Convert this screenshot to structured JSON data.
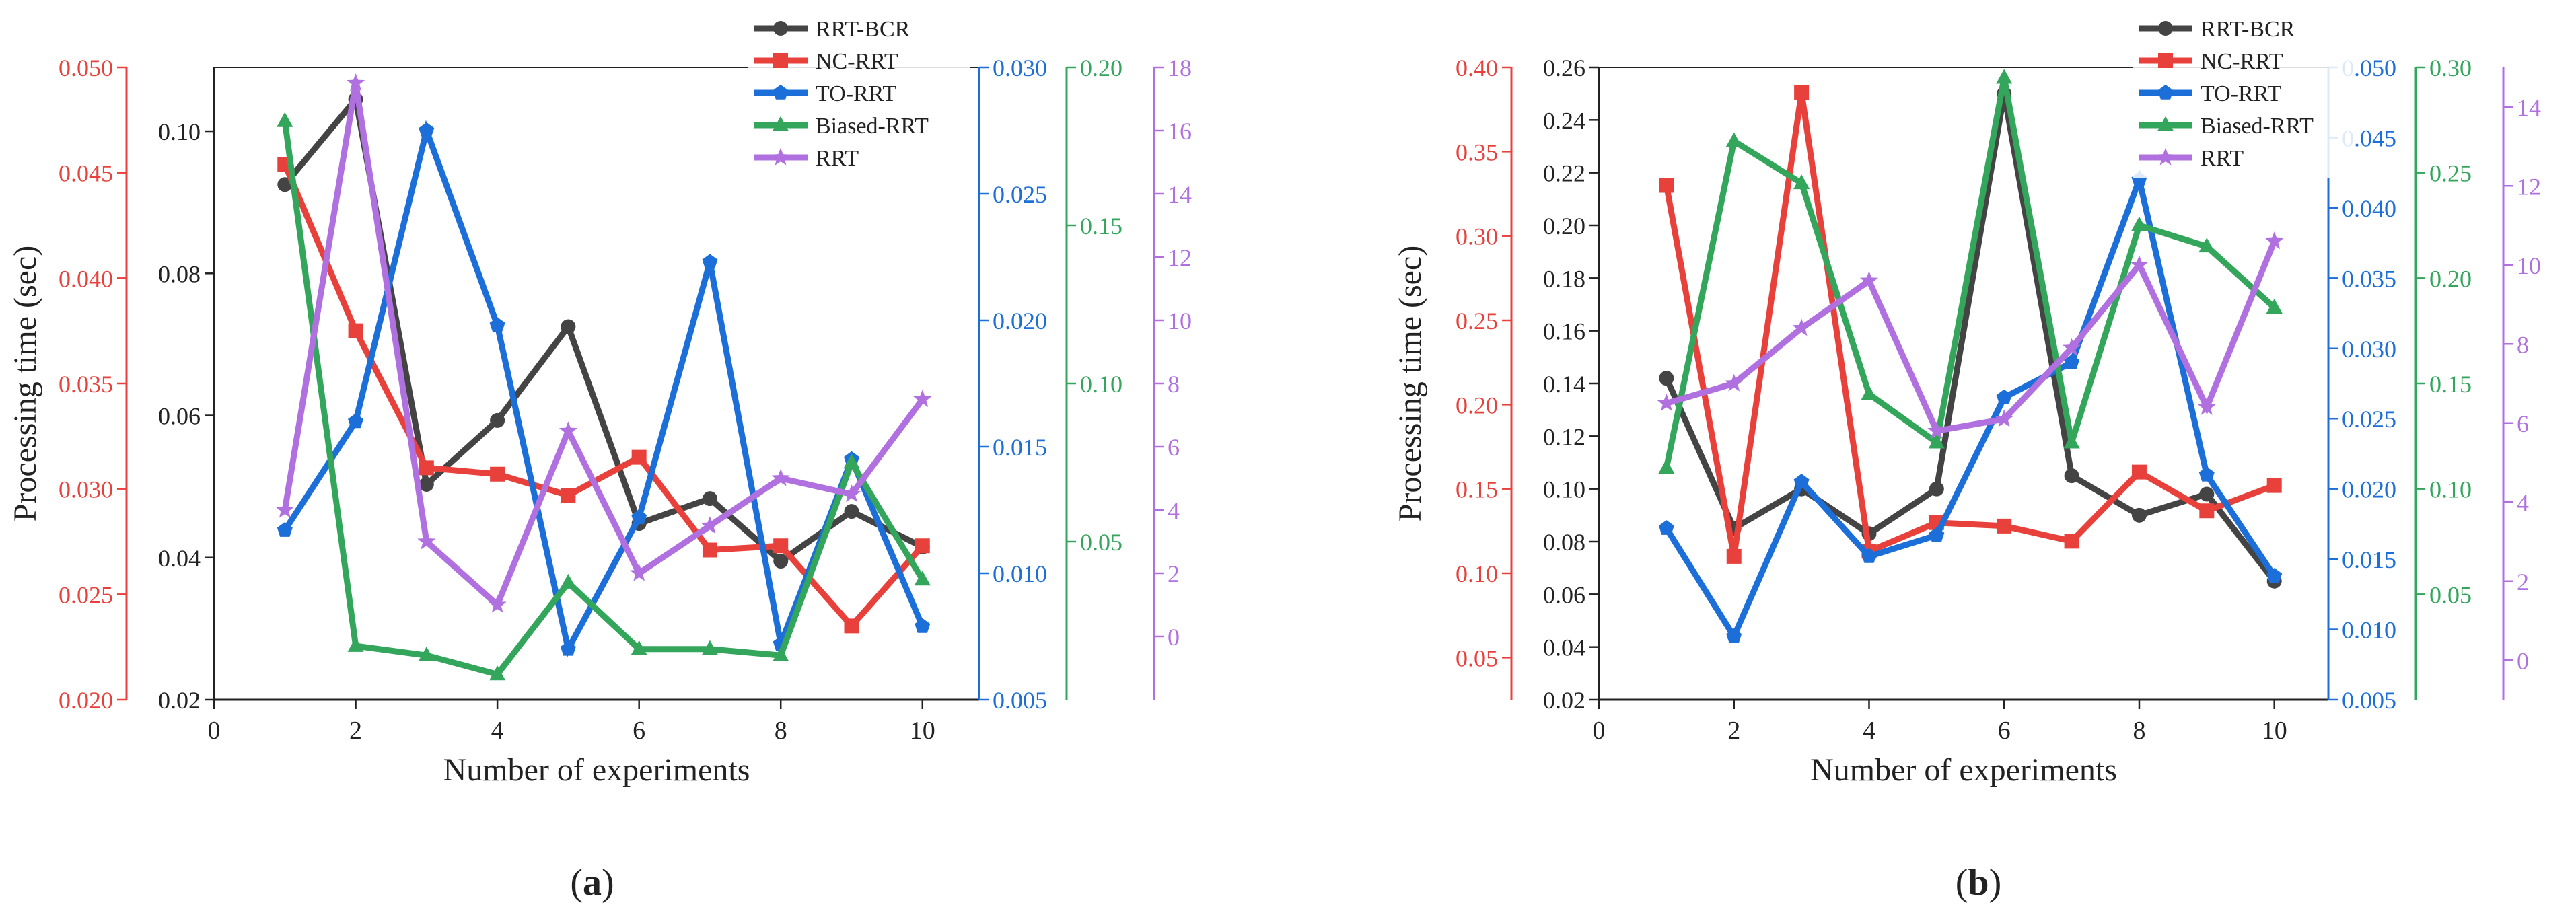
{
  "colors": {
    "RRT-BCR": "#444444",
    "NC-RRT": "#e8413c",
    "TO-RRT": "#1c6fd8",
    "Biased-RRT": "#33a65c",
    "RRT": "#b070e0",
    "axis": "#222222"
  },
  "chart_data": [
    {
      "panel_label": "a",
      "type": "line",
      "title": "",
      "xlabel": "Number of experiments",
      "ylabel": "Processing time (sec)",
      "xlim": [
        0,
        10.8
      ],
      "x_ticks": [
        0,
        2,
        4,
        6,
        8,
        10
      ],
      "x_tick_labels": [
        "0",
        "2",
        "4",
        "6",
        "8",
        "10"
      ],
      "x": [
        1,
        2,
        3,
        4,
        5,
        6,
        7,
        8,
        9,
        10
      ],
      "legend": [
        "RRT-BCR",
        "NC-RRT",
        "TO-RRT",
        "Biased-RRT",
        "RRT"
      ],
      "legend_position": "top-center",
      "axes": [
        {
          "id": "black",
          "side": "left",
          "order": 0,
          "color": "axis",
          "range": [
            0.02,
            0.109
          ],
          "ticks": [
            0.02,
            0.04,
            0.06,
            0.08,
            0.1
          ],
          "tick_labels": [
            "0.02",
            "0.04",
            "0.06",
            "0.08",
            "0.10"
          ]
        },
        {
          "id": "red",
          "side": "left",
          "order": 1,
          "color": "NC-RRT",
          "range": [
            0.02,
            0.05
          ],
          "ticks": [
            0.02,
            0.025,
            0.03,
            0.035,
            0.04,
            0.045,
            0.05
          ],
          "tick_labels": [
            "0.020",
            "0.025",
            "0.030",
            "0.035",
            "0.040",
            "0.045",
            "0.050"
          ]
        },
        {
          "id": "blue",
          "side": "right",
          "order": 0,
          "color": "TO-RRT",
          "range": [
            0.005,
            0.03
          ],
          "ticks": [
            0.005,
            0.01,
            0.015,
            0.02,
            0.025,
            0.03
          ],
          "tick_labels": [
            "0.005",
            "0.010",
            "0.015",
            "0.020",
            "0.025",
            "0.030"
          ]
        },
        {
          "id": "green",
          "side": "right",
          "order": 1,
          "color": "Biased-RRT",
          "range": [
            0.0,
            0.2
          ],
          "ticks": [
            0.05,
            0.1,
            0.15,
            0.2
          ],
          "tick_labels": [
            "0.05",
            "0.10",
            "0.15",
            "0.20"
          ]
        },
        {
          "id": "purple",
          "side": "right",
          "order": 2,
          "color": "RRT",
          "range": [
            -2,
            18
          ],
          "ticks": [
            0,
            2,
            4,
            6,
            8,
            10,
            12,
            14,
            16,
            18
          ],
          "tick_labels": [
            "0",
            "2",
            "4",
            "6",
            "8",
            "10",
            "12",
            "14",
            "16",
            "18"
          ]
        }
      ],
      "series": [
        {
          "name": "RRT-BCR",
          "axis": "black",
          "marker": "circle",
          "values": [
            0.0925,
            0.1045,
            0.0503,
            0.0593,
            0.0725,
            0.0448,
            0.0483,
            0.0395,
            0.0465,
            0.0415
          ]
        },
        {
          "name": "NC-RRT",
          "axis": "red",
          "marker": "square",
          "values": [
            0.0454,
            0.0375,
            0.031,
            0.0307,
            0.0297,
            0.0315,
            0.0271,
            0.0273,
            0.0235,
            0.0273
          ]
        },
        {
          "name": "TO-RRT",
          "axis": "blue",
          "marker": "pentagon",
          "values": [
            0.0117,
            0.016,
            0.0275,
            0.0198,
            0.007,
            0.0122,
            0.0223,
            0.0072,
            0.0145,
            0.0079
          ]
        },
        {
          "name": "Biased-RRT",
          "axis": "green",
          "marker": "triangle",
          "values": [
            0.183,
            0.017,
            0.014,
            0.008,
            0.037,
            0.016,
            0.016,
            0.014,
            0.075,
            0.038
          ]
        },
        {
          "name": "RRT",
          "axis": "purple",
          "marker": "star",
          "values": [
            4.0,
            17.5,
            3.0,
            1.0,
            6.5,
            2.0,
            3.5,
            5.0,
            4.5,
            7.5
          ]
        }
      ]
    },
    {
      "panel_label": "b",
      "type": "line",
      "title": "",
      "xlabel": "Number of experiments",
      "ylabel": "Processing time (sec)",
      "xlim": [
        0,
        10.8
      ],
      "x_ticks": [
        0,
        2,
        4,
        6,
        8,
        10
      ],
      "x_tick_labels": [
        "0",
        "2",
        "4",
        "6",
        "8",
        "10"
      ],
      "x": [
        1,
        2,
        3,
        4,
        5,
        6,
        7,
        8,
        9,
        10
      ],
      "legend": [
        "RRT-BCR",
        "NC-RRT",
        "TO-RRT",
        "Biased-RRT",
        "RRT"
      ],
      "legend_position": "top-center",
      "axes": [
        {
          "id": "black",
          "side": "left",
          "order": 0,
          "color": "axis",
          "range": [
            0.02,
            0.26
          ],
          "ticks": [
            0.02,
            0.04,
            0.06,
            0.08,
            0.1,
            0.12,
            0.14,
            0.16,
            0.18,
            0.2,
            0.22,
            0.24,
            0.26
          ],
          "tick_labels": [
            "0.02",
            "0.04",
            "0.06",
            "0.08",
            "0.10",
            "0.12",
            "0.14",
            "0.16",
            "0.18",
            "0.20",
            "0.22",
            "0.24",
            "0.26"
          ]
        },
        {
          "id": "red",
          "side": "left",
          "order": 1,
          "color": "NC-RRT",
          "range": [
            0.025,
            0.4
          ],
          "ticks": [
            0.05,
            0.1,
            0.15,
            0.2,
            0.25,
            0.3,
            0.35,
            0.4
          ],
          "tick_labels": [
            "0.05",
            "0.10",
            "0.15",
            "0.20",
            "0.25",
            "0.30",
            "0.35",
            "0.40"
          ]
        },
        {
          "id": "blue",
          "side": "right",
          "order": 0,
          "color": "TO-RRT",
          "range": [
            0.005,
            0.05
          ],
          "ticks": [
            0.005,
            0.01,
            0.015,
            0.02,
            0.025,
            0.03,
            0.035,
            0.04,
            0.045,
            0.05
          ],
          "tick_labels": [
            "0.005",
            "0.010",
            "0.015",
            "0.020",
            "0.025",
            "0.030",
            "0.035",
            "0.040",
            "0.045",
            "0.050"
          ]
        },
        {
          "id": "green",
          "side": "right",
          "order": 1,
          "color": "Biased-RRT",
          "range": [
            0.0,
            0.3
          ],
          "ticks": [
            0.05,
            0.1,
            0.15,
            0.2,
            0.25,
            0.3
          ],
          "tick_labels": [
            "0.05",
            "0.10",
            "0.15",
            "0.20",
            "0.25",
            "0.30"
          ]
        },
        {
          "id": "purple",
          "side": "right",
          "order": 2,
          "color": "RRT",
          "range": [
            -1,
            15
          ],
          "ticks": [
            0,
            2,
            4,
            6,
            8,
            10,
            12,
            14
          ],
          "tick_labels": [
            "0",
            "2",
            "4",
            "6",
            "8",
            "10",
            "12",
            "14"
          ]
        }
      ],
      "series": [
        {
          "name": "RRT-BCR",
          "axis": "black",
          "marker": "circle",
          "values": [
            0.142,
            0.085,
            0.1,
            0.083,
            0.1,
            0.25,
            0.105,
            0.09,
            0.098,
            0.065
          ]
        },
        {
          "name": "NC-RRT",
          "axis": "red",
          "marker": "square",
          "values": [
            0.33,
            0.11,
            0.385,
            0.113,
            0.13,
            0.128,
            0.119,
            0.16,
            0.137,
            0.152
          ]
        },
        {
          "name": "TO-RRT",
          "axis": "blue",
          "marker": "pentagon",
          "values": [
            0.0172,
            0.0095,
            0.0205,
            0.0152,
            0.0167,
            0.0265,
            0.029,
            0.042,
            0.021,
            0.0138
          ]
        },
        {
          "name": "Biased-RRT",
          "axis": "green",
          "marker": "triangle",
          "values": [
            0.11,
            0.265,
            0.245,
            0.145,
            0.122,
            0.295,
            0.122,
            0.225,
            0.215,
            0.186
          ]
        },
        {
          "name": "RRT",
          "axis": "purple",
          "marker": "star",
          "values": [
            6.5,
            7.0,
            8.4,
            9.6,
            5.8,
            6.1,
            7.9,
            10.0,
            6.4,
            10.6
          ]
        }
      ]
    }
  ]
}
